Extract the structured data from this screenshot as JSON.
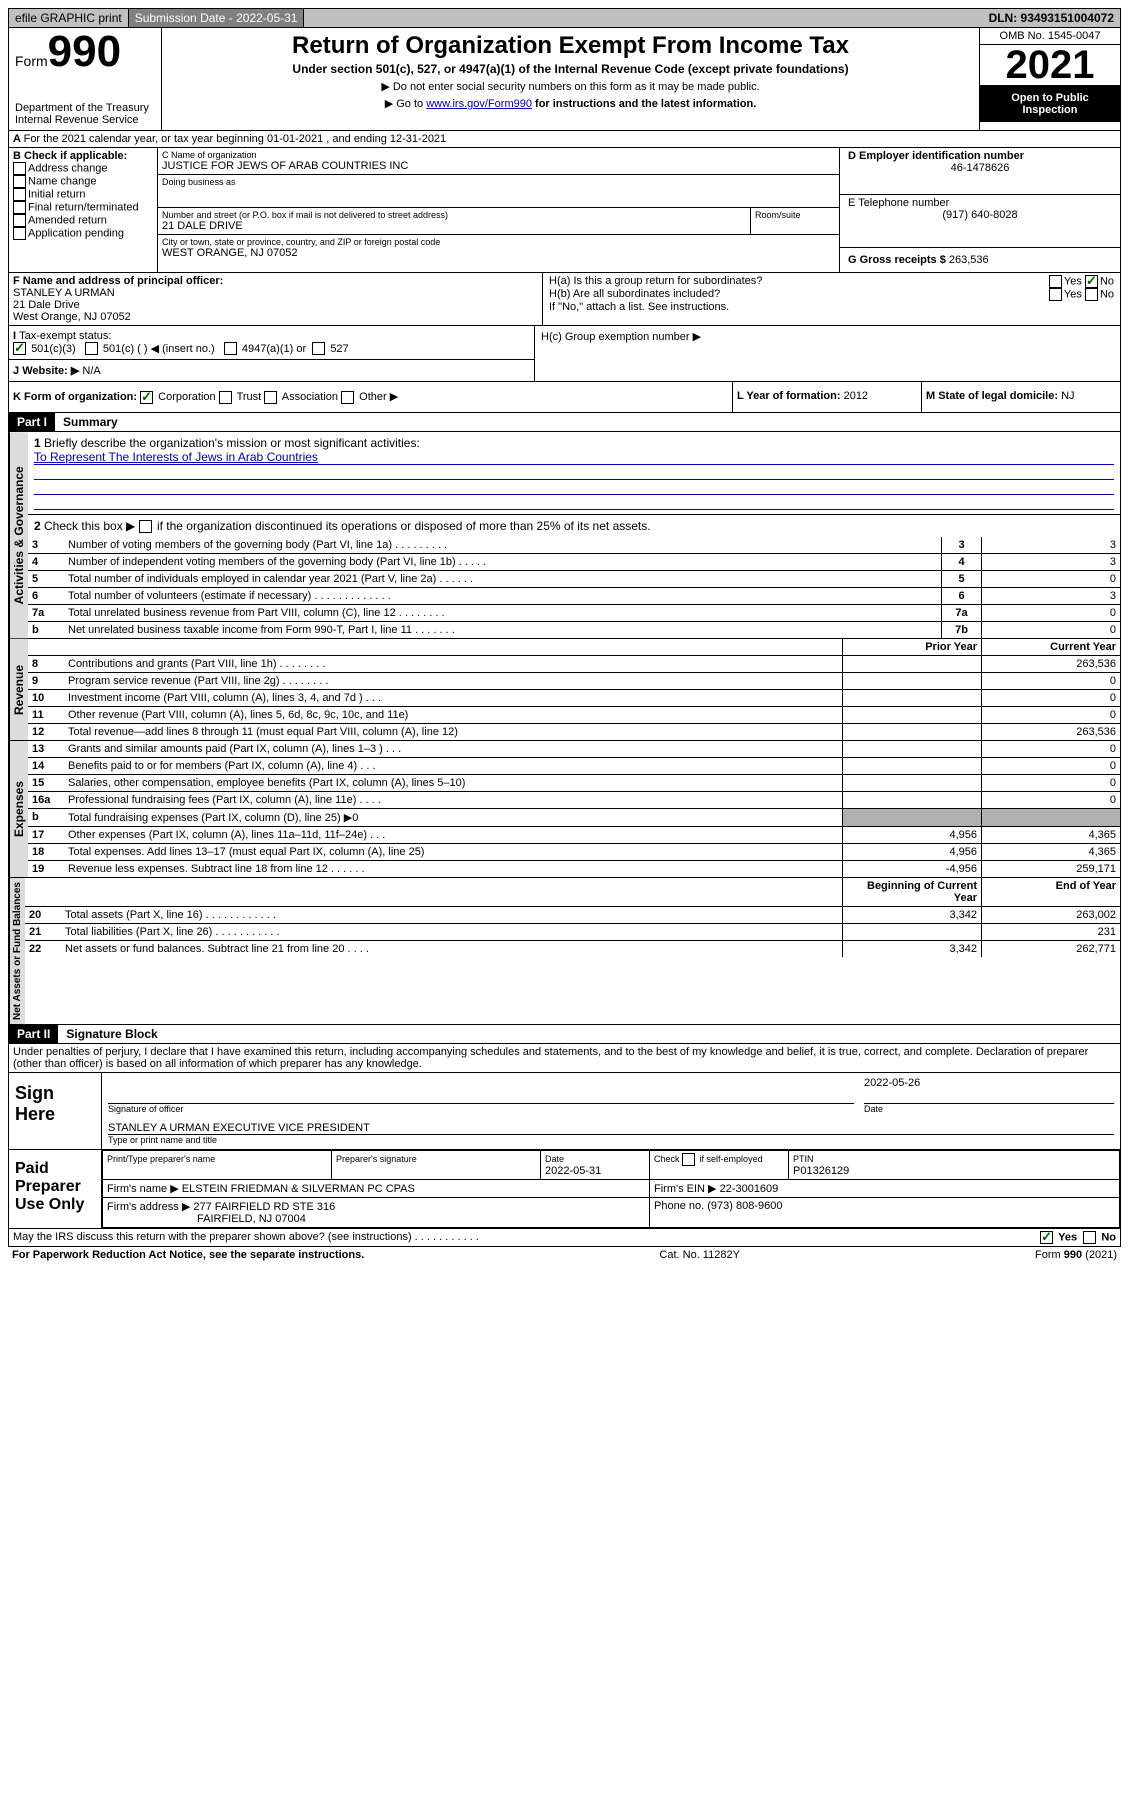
{
  "topbar": {
    "efile": "efile GRAPHIC print",
    "sub_label": "Submission Date -",
    "sub_date": "2022-05-31",
    "dln": "DLN: 93493151004072"
  },
  "header": {
    "form_word": "Form",
    "form_no": "990",
    "dept": "Department of the Treasury",
    "irs": "Internal Revenue Service",
    "title": "Return of Organization Exempt From Income Tax",
    "sub1": "Under section 501(c), 527, or 4947(a)(1) of the Internal Revenue Code (except private foundations)",
    "sub2": "▶ Do not enter social security numbers on this form as it may be made public.",
    "sub3_pre": "▶ Go to ",
    "sub3_link": "www.irs.gov/Form990",
    "sub3_post": " for instructions and the latest information.",
    "omb": "OMB No. 1545-0047",
    "year": "2021",
    "open": "Open to Public Inspection"
  },
  "periodA": "For the 2021 calendar year, or tax year beginning 01-01-2021 , and ending 12-31-2021",
  "boxB": {
    "title": "B Check if applicable:",
    "items": [
      "Address change",
      "Name change",
      "Initial return",
      "Final return/terminated",
      "Amended return",
      "Application pending"
    ]
  },
  "boxC": {
    "label": "C Name of organization",
    "name": "JUSTICE FOR JEWS OF ARAB COUNTRIES INC",
    "dba": "Doing business as",
    "addr_label": "Number and street (or P.O. box if mail is not delivered to street address)",
    "room": "Room/suite",
    "addr": "21 DALE DRIVE",
    "city_label": "City or town, state or province, country, and ZIP or foreign postal code",
    "city": "WEST ORANGE, NJ  07052"
  },
  "boxD": {
    "label": "D Employer identification number",
    "val": "46-1478626"
  },
  "boxE": {
    "label": "E Telephone number",
    "val": "(917) 640-8028"
  },
  "boxG": {
    "label": "G Gross receipts $",
    "val": "263,536"
  },
  "boxF": {
    "label": "F Name and address of principal officer:",
    "name": "STANLEY A URMAN",
    "addr1": "21 Dale Drive",
    "addr2": "West Orange, NJ  07052"
  },
  "boxH": {
    "ha": "H(a)  Is this a group return for subordinates?",
    "hb": "H(b)  Are all subordinates included?",
    "hb_note": "If \"No,\" attach a list. See instructions.",
    "hc": "H(c)  Group exemption number ▶",
    "yes": "Yes",
    "no": "No"
  },
  "boxI": {
    "label": "Tax-exempt status:",
    "c3": "501(c)(3)",
    "c": "501(c) (   ) ◀ (insert no.)",
    "a1": "4947(a)(1) or",
    "s527": "527"
  },
  "boxJ": {
    "label": "Website: ▶",
    "val": "N/A"
  },
  "boxK": {
    "label": "K Form of organization:",
    "corp": "Corporation",
    "trust": "Trust",
    "assoc": "Association",
    "other": "Other ▶"
  },
  "boxL": {
    "label": "L Year of formation:",
    "val": "2012"
  },
  "boxM": {
    "label": "M State of legal domicile:",
    "val": "NJ"
  },
  "part1": {
    "label": "Part I",
    "title": "Summary",
    "l1": "Briefly describe the organization's mission or most significant activities:",
    "l1val": "To Represent The Interests of Jews in Arab Countries",
    "l2": "Check this box ▶",
    "l2post": " if the organization discontinued its operations or disposed of more than 25% of its net assets.",
    "sideA": "Activities & Governance",
    "sideR": "Revenue",
    "sideE": "Expenses",
    "sideN": "Net Assets or Fund Balances",
    "rows_ag": [
      {
        "n": "3",
        "d": "Number of voting members of the governing body (Part VI, line 1a)   .    .    .    .    .    .    .    .    .",
        "b": "3",
        "v": "3"
      },
      {
        "n": "4",
        "d": "Number of independent voting members of the governing body (Part VI, line 1b)   .    .    .    .    .",
        "b": "4",
        "v": "3"
      },
      {
        "n": "5",
        "d": "Total number of individuals employed in calendar year 2021 (Part V, line 2a)   .    .    .    .    .    .",
        "b": "5",
        "v": "0"
      },
      {
        "n": "6",
        "d": "Total number of volunteers (estimate if necessary)   .    .    .    .    .    .    .    .    .    .    .    .    .",
        "b": "6",
        "v": "3"
      },
      {
        "n": "7a",
        "d": "Total unrelated business revenue from Part VIII, column (C), line 12   .    .    .    .    .    .    .    .",
        "b": "7a",
        "v": "0"
      },
      {
        "n": "b",
        "d": "Net unrelated business taxable income from Form 990-T, Part I, line 11   .    .    .    .    .    .    .",
        "b": "7b",
        "v": "0"
      }
    ],
    "col_prior": "Prior Year",
    "col_curr": "Current Year",
    "rows_rev": [
      {
        "n": "8",
        "d": "Contributions and grants (Part VIII, line 1h)   .    .    .    .    .    .    .    .",
        "p": "",
        "c": "263,536"
      },
      {
        "n": "9",
        "d": "Program service revenue (Part VIII, line 2g)   .    .    .    .    .    .    .    .",
        "p": "",
        "c": "0"
      },
      {
        "n": "10",
        "d": "Investment income (Part VIII, column (A), lines 3, 4, and 7d )   .    .    .",
        "p": "",
        "c": "0"
      },
      {
        "n": "11",
        "d": "Other revenue (Part VIII, column (A), lines 5, 6d, 8c, 9c, 10c, and 11e)",
        "p": "",
        "c": "0"
      },
      {
        "n": "12",
        "d": "Total revenue—add lines 8 through 11 (must equal Part VIII, column (A), line 12)",
        "p": "",
        "c": "263,536"
      }
    ],
    "rows_exp": [
      {
        "n": "13",
        "d": "Grants and similar amounts paid (Part IX, column (A), lines 1–3 )   .    .    .",
        "p": "",
        "c": "0"
      },
      {
        "n": "14",
        "d": "Benefits paid to or for members (Part IX, column (A), line 4)   .    .    .",
        "p": "",
        "c": "0"
      },
      {
        "n": "15",
        "d": "Salaries, other compensation, employee benefits (Part IX, column (A), lines 5–10)",
        "p": "",
        "c": "0"
      },
      {
        "n": "16a",
        "d": "Professional fundraising fees (Part IX, column (A), line 11e)   .    .    .    .",
        "p": "",
        "c": "0"
      },
      {
        "n": "b",
        "d": "Total fundraising expenses (Part IX, column (D), line 25) ▶0",
        "p": "SHADE",
        "c": "SHADE"
      },
      {
        "n": "17",
        "d": "Other expenses (Part IX, column (A), lines 11a–11d, 11f–24e)   .    .    .",
        "p": "4,956",
        "c": "4,365"
      },
      {
        "n": "18",
        "d": "Total expenses. Add lines 13–17 (must equal Part IX, column (A), line 25)",
        "p": "4,956",
        "c": "4,365"
      },
      {
        "n": "19",
        "d": "Revenue less expenses. Subtract line 18 from line 12   .    .    .    .    .    .",
        "p": "-4,956",
        "c": "259,171"
      }
    ],
    "col_begin": "Beginning of Current Year",
    "col_end": "End of Year",
    "rows_net": [
      {
        "n": "20",
        "d": "Total assets (Part X, line 16)   .    .    .    .    .    .    .    .    .    .    .    .",
        "p": "3,342",
        "c": "263,002"
      },
      {
        "n": "21",
        "d": "Total liabilities (Part X, line 26)   .    .    .    .    .    .    .    .    .    .    .",
        "p": "",
        "c": "231"
      },
      {
        "n": "22",
        "d": "Net assets or fund balances. Subtract line 21 from line 20   .    .    .    .",
        "p": "3,342",
        "c": "262,771"
      }
    ]
  },
  "part2": {
    "label": "Part II",
    "title": "Signature Block",
    "decl": "Under penalties of perjury, I declare that I have examined this return, including accompanying schedules and statements, and to the best of my knowledge and belief, it is true, correct, and complete. Declaration of preparer (other than officer) is based on all information of which preparer has any knowledge.",
    "sign_here": "Sign Here",
    "sig_off": "Signature of officer",
    "date": "Date",
    "sig_date": "2022-05-26",
    "name_title": "STANLEY A URMAN  EXECUTIVE VICE PRESIDENT",
    "name_label": "Type or print name and title",
    "paid": "Paid Preparer Use Only",
    "prep_name_l": "Print/Type preparer's name",
    "prep_sig_l": "Preparer's signature",
    "prep_date_l": "Date",
    "prep_date": "2022-05-31",
    "check_l": "Check",
    "if_l": "if self-employed",
    "ptin_l": "PTIN",
    "ptin": "P01326129",
    "firm_name_l": "Firm's name    ▶",
    "firm_name": "ELSTEIN FRIEDMAN & SILVERMAN PC CPAS",
    "firm_ein_l": "Firm's EIN ▶",
    "firm_ein": "22-3001609",
    "firm_addr_l": "Firm's address ▶",
    "firm_addr1": "277 FAIRFIELD RD STE 316",
    "firm_addr2": "FAIRFIELD, NJ  07004",
    "phone_l": "Phone no.",
    "phone": "(973) 808-9600",
    "discuss": "May the IRS discuss this return with the preparer shown above? (see instructions)   .    .    .    .    .    .    .    .    .    .    .",
    "yes": "Yes",
    "no": "No"
  },
  "footer": {
    "left": "For Paperwork Reduction Act Notice, see the separate instructions.",
    "mid": "Cat. No. 11282Y",
    "right_pre": "Form ",
    "right_form": "990",
    "right_post": " (2021)"
  }
}
